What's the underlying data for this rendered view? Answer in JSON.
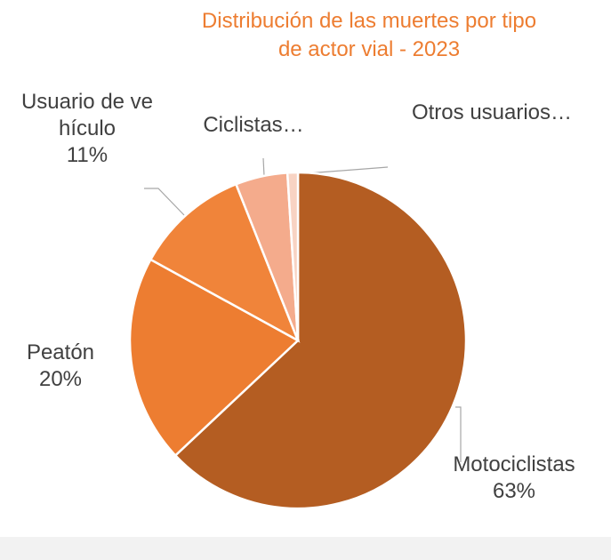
{
  "chart_data": {
    "type": "pie",
    "title": "Distribución de las muertes por tipo de actor vial - 2023",
    "categories": [
      "Motociclistas",
      "Peatón",
      "Usuario de vehículo",
      "Ciclistas…",
      "Otros usuarios…"
    ],
    "values": [
      63,
      20,
      11,
      5,
      1
    ],
    "value_labels": [
      "63%",
      "20%",
      "11%",
      null,
      null
    ],
    "colors": [
      "#b45d22",
      "#ed7d31",
      "#f0843a",
      "#f4ab8c",
      "#f8d3c3"
    ]
  }
}
